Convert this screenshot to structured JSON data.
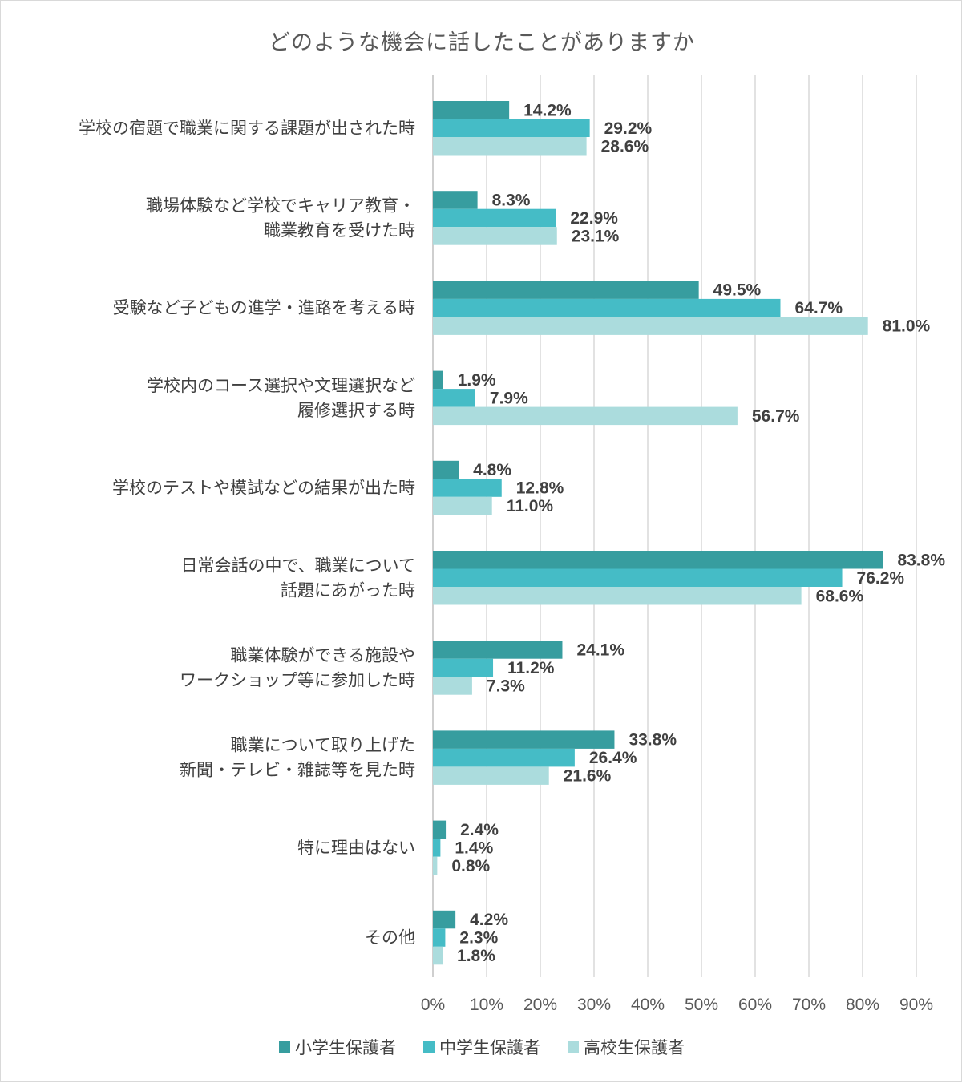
{
  "chart_data": {
    "type": "bar",
    "orientation": "horizontal",
    "title": "どのような機会に話したことがありますか",
    "categories": [
      [
        "学校の宿題で職業に関する課題が出された時"
      ],
      [
        "職場体験など学校でキャリア教育・",
        "職業教育を受けた時"
      ],
      [
        "受験など子どもの進学・進路を考える時"
      ],
      [
        "学校内のコース選択や文理選択など",
        "履修選択する時"
      ],
      [
        "学校のテストや模試などの結果が出た時"
      ],
      [
        "日常会話の中で、職業について",
        "話題にあがった時"
      ],
      [
        "職業体験ができる施設や",
        "ワークショップ等に参加した時"
      ],
      [
        "職業について取り上げた",
        "新聞・テレビ・雑誌等を見た時"
      ],
      [
        "特に理由はない"
      ],
      [
        "その他"
      ]
    ],
    "series": [
      {
        "name": "小学生保護者",
        "color": "#379d9f",
        "values": [
          14.2,
          8.3,
          49.5,
          1.9,
          4.8,
          83.8,
          24.1,
          33.8,
          2.4,
          4.2
        ],
        "labels": [
          "14.2%",
          "8.3%",
          "49.5%",
          "1.9%",
          "4.8%",
          "83.8%",
          "24.1%",
          "33.8%",
          "2.4%",
          "4.2%"
        ]
      },
      {
        "name": "中学生保護者",
        "color": "#45bcc6",
        "values": [
          29.2,
          22.9,
          64.7,
          7.9,
          12.8,
          76.2,
          11.2,
          26.4,
          1.4,
          2.3
        ],
        "labels": [
          "29.2%",
          "22.9%",
          "64.7%",
          "7.9%",
          "12.8%",
          "76.2%",
          "11.2%",
          "26.4%",
          "1.4%",
          "2.3%"
        ]
      },
      {
        "name": "高校生保護者",
        "color": "#abdcdd",
        "values": [
          28.6,
          23.1,
          81.0,
          56.7,
          11.0,
          68.6,
          7.3,
          21.6,
          0.8,
          1.8
        ],
        "labels": [
          "28.6%",
          "23.1%",
          "81.0%",
          "56.7%",
          "11.0%",
          "68.6%",
          "7.3%",
          "21.6%",
          "0.8%",
          "1.8%"
        ]
      }
    ],
    "xlim": [
      0,
      90
    ],
    "xticks": [
      "0%",
      "10%",
      "20%",
      "30%",
      "40%",
      "50%",
      "60%",
      "70%",
      "80%",
      "90%"
    ],
    "grid": "vertical",
    "legend_position": "bottom"
  }
}
